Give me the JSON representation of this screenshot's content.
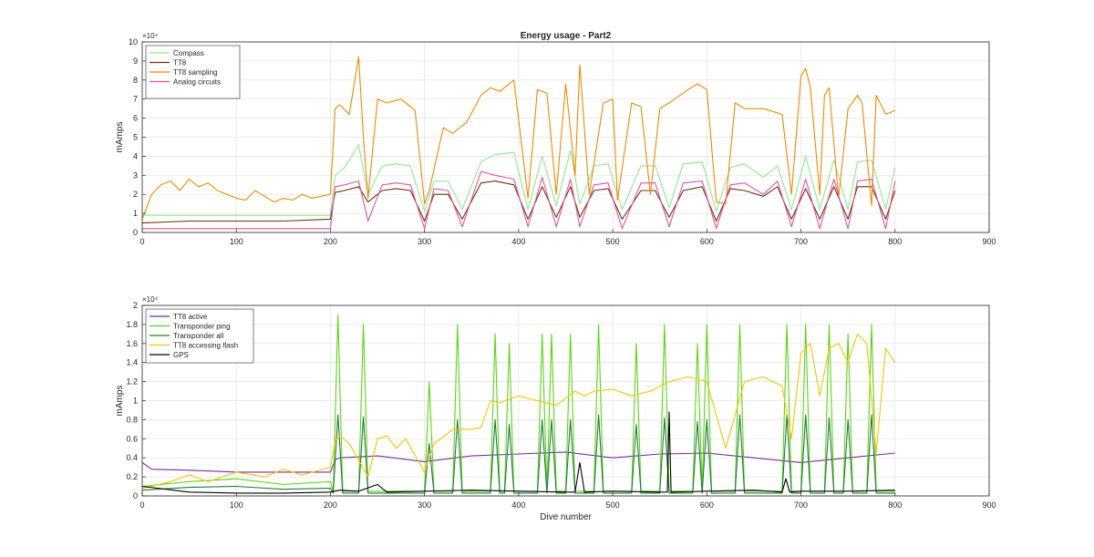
{
  "figure": {
    "background": "#ffffff"
  },
  "chart_data": [
    {
      "type": "line",
      "title": "Energy usage - Part2",
      "xlabel": "",
      "ylabel": "mAmps",
      "xlim": [
        0,
        900
      ],
      "ylim": [
        0,
        100000
      ],
      "xticks": [
        0,
        100,
        200,
        300,
        400,
        500,
        600,
        700,
        800,
        900
      ],
      "yticks": [
        0,
        10000,
        20000,
        30000,
        40000,
        50000,
        60000,
        70000,
        80000,
        90000,
        100000
      ],
      "ytick_labels": [
        "0",
        "1",
        "2",
        "3",
        "4",
        "5",
        "6",
        "7",
        "8",
        "9",
        "10"
      ],
      "y_exponent": "×10⁴",
      "grid": true,
      "legend_position": "top-left",
      "series": [
        {
          "name": "Compass",
          "color": "#8fea8f",
          "x": [
            0,
            50,
            100,
            150,
            200,
            205,
            215,
            230,
            240,
            255,
            270,
            285,
            300,
            310,
            325,
            340,
            360,
            375,
            395,
            410,
            425,
            440,
            455,
            465,
            480,
            495,
            510,
            530,
            545,
            560,
            575,
            595,
            610,
            625,
            640,
            660,
            675,
            690,
            705,
            720,
            735,
            750,
            760,
            775,
            790,
            800
          ],
          "values": [
            9000,
            9000,
            9000,
            9000,
            9000,
            30000,
            34000,
            46000,
            20000,
            35000,
            36000,
            35000,
            11000,
            27000,
            27000,
            12000,
            37000,
            41000,
            42000,
            12000,
            40000,
            14000,
            43000,
            15000,
            35000,
            36000,
            12000,
            35000,
            35000,
            13000,
            36000,
            37000,
            11000,
            34000,
            36000,
            29000,
            35000,
            12000,
            40000,
            12000,
            38000,
            12000,
            37000,
            38000,
            12000,
            34000
          ]
        },
        {
          "name": "TT8",
          "color": "#6b3210",
          "x": [
            0,
            50,
            100,
            150,
            200,
            205,
            215,
            230,
            240,
            255,
            270,
            285,
            300,
            310,
            325,
            340,
            360,
            375,
            395,
            410,
            425,
            440,
            455,
            465,
            480,
            495,
            510,
            530,
            545,
            560,
            575,
            595,
            610,
            625,
            640,
            660,
            675,
            690,
            705,
            720,
            735,
            750,
            760,
            775,
            790,
            800
          ],
          "values": [
            5000,
            6000,
            6000,
            6000,
            7000,
            21000,
            22000,
            24000,
            16000,
            22000,
            23000,
            22000,
            6000,
            20000,
            20000,
            7000,
            26000,
            27000,
            25000,
            7000,
            24000,
            8000,
            24000,
            8000,
            22000,
            23000,
            7000,
            22000,
            22000,
            8000,
            22000,
            24000,
            6000,
            23000,
            22000,
            19000,
            24000,
            7000,
            23000,
            7000,
            24000,
            7000,
            24000,
            24000,
            7000,
            22000
          ]
        },
        {
          "name": "TT8 sampling",
          "color": "#f08a00",
          "x": [
            0,
            10,
            20,
            30,
            40,
            50,
            60,
            70,
            80,
            90,
            100,
            110,
            120,
            130,
            140,
            150,
            160,
            170,
            180,
            190,
            200,
            205,
            210,
            220,
            230,
            235,
            240,
            250,
            260,
            275,
            290,
            300,
            305,
            320,
            330,
            345,
            360,
            370,
            380,
            395,
            410,
            420,
            430,
            440,
            450,
            460,
            465,
            475,
            490,
            500,
            505,
            520,
            530,
            540,
            550,
            560,
            580,
            590,
            600,
            610,
            620,
            630,
            640,
            660,
            680,
            690,
            700,
            705,
            710,
            720,
            725,
            730,
            740,
            750,
            760,
            765,
            775,
            780,
            790,
            800
          ],
          "values": [
            7000,
            20000,
            25000,
            27000,
            22000,
            28000,
            24000,
            26000,
            22000,
            20000,
            18000,
            17000,
            22000,
            19000,
            16000,
            18000,
            17000,
            20000,
            18000,
            19000,
            20000,
            65000,
            67000,
            62000,
            92000,
            50000,
            18000,
            70000,
            68000,
            70000,
            64000,
            15000,
            22000,
            55000,
            52000,
            58000,
            72000,
            76000,
            74000,
            80000,
            18000,
            75000,
            73000,
            20000,
            78000,
            30000,
            88000,
            20000,
            68000,
            70000,
            17000,
            68000,
            66000,
            20000,
            65000,
            68000,
            75000,
            78000,
            75000,
            16000,
            15000,
            68000,
            65000,
            65000,
            62000,
            20000,
            82000,
            86000,
            76000,
            20000,
            72000,
            76000,
            18000,
            65000,
            72000,
            68000,
            14000,
            72000,
            62000,
            64000
          ]
        },
        {
          "name": "Analog circuits",
          "color": "#e0559c",
          "x": [
            0,
            50,
            100,
            150,
            200,
            205,
            215,
            230,
            240,
            255,
            270,
            285,
            300,
            310,
            325,
            340,
            360,
            375,
            395,
            410,
            425,
            440,
            455,
            465,
            480,
            495,
            510,
            530,
            545,
            560,
            575,
            595,
            610,
            625,
            640,
            660,
            675,
            690,
            705,
            720,
            735,
            750,
            760,
            775,
            790,
            800
          ],
          "values": [
            2000,
            2000,
            2000,
            2000,
            2000,
            24000,
            25000,
            27000,
            6000,
            25000,
            26000,
            25000,
            2000,
            23000,
            22000,
            3000,
            32000,
            30000,
            28000,
            3000,
            29000,
            3000,
            28000,
            3000,
            25000,
            26000,
            2000,
            26000,
            26000,
            3000,
            26000,
            27000,
            2000,
            25000,
            26000,
            20000,
            27000,
            3000,
            28000,
            2000,
            28000,
            2000,
            27000,
            28000,
            2000,
            27000
          ]
        }
      ]
    },
    {
      "type": "line",
      "title": "",
      "xlabel": "Dive number",
      "ylabel": "mAmps",
      "xlim": [
        0,
        900
      ],
      "ylim": [
        0,
        20000
      ],
      "xticks": [
        0,
        100,
        200,
        300,
        400,
        500,
        600,
        700,
        800,
        900
      ],
      "yticks": [
        0,
        2000,
        4000,
        6000,
        8000,
        10000,
        12000,
        14000,
        16000,
        18000,
        20000
      ],
      "ytick_labels": [
        "0",
        "0.2",
        "0.4",
        "0.6",
        "0.8",
        "1",
        "1.2",
        "1.4",
        "1.6",
        "1.8",
        "2"
      ],
      "y_exponent": "×10⁴",
      "grid": true,
      "legend_position": "top-left",
      "series": [
        {
          "name": "TT8 active",
          "color": "#7a2a9e",
          "x": [
            0,
            10,
            50,
            100,
            150,
            200,
            205,
            210,
            250,
            300,
            350,
            400,
            450,
            500,
            550,
            600,
            650,
            700,
            750,
            800
          ],
          "values": [
            3500,
            2800,
            2700,
            2500,
            2500,
            2500,
            3800,
            4000,
            4200,
            3600,
            4200,
            4400,
            4600,
            4000,
            4400,
            4500,
            4000,
            3500,
            4000,
            4500
          ]
        },
        {
          "name": "Transponder ping",
          "color": "#5cd416",
          "x": [
            0,
            50,
            100,
            150,
            200,
            203,
            208,
            213,
            230,
            235,
            240,
            300,
            305,
            310,
            330,
            335,
            340,
            370,
            375,
            380,
            385,
            390,
            395,
            420,
            425,
            430,
            435,
            440,
            450,
            455,
            460,
            480,
            485,
            490,
            520,
            525,
            530,
            550,
            555,
            560,
            585,
            590,
            595,
            600,
            605,
            630,
            635,
            640,
            680,
            685,
            690,
            700,
            705,
            710,
            725,
            730,
            735,
            745,
            750,
            755,
            770,
            775,
            780,
            790,
            800
          ],
          "values": [
            1000,
            1500,
            1800,
            1200,
            1500,
            500,
            19000,
            500,
            500,
            18000,
            500,
            500,
            12000,
            500,
            500,
            18000,
            500,
            500,
            17000,
            500,
            500,
            16000,
            500,
            500,
            17000,
            500,
            17000,
            500,
            500,
            17000,
            500,
            500,
            18000,
            500,
            500,
            16000,
            500,
            500,
            18000,
            500,
            500,
            16000,
            500,
            18000,
            500,
            500,
            18000,
            500,
            500,
            18000,
            500,
            500,
            18000,
            500,
            500,
            18000,
            500,
            500,
            17000,
            500,
            500,
            18000,
            500,
            500,
            500
          ]
        },
        {
          "name": "Transponder all",
          "color": "#1f7a3a",
          "x": [
            0,
            50,
            100,
            150,
            200,
            203,
            208,
            213,
            230,
            235,
            240,
            300,
            305,
            310,
            330,
            335,
            340,
            370,
            375,
            380,
            385,
            390,
            395,
            420,
            425,
            430,
            435,
            440,
            450,
            455,
            460,
            480,
            485,
            490,
            520,
            525,
            530,
            550,
            555,
            560,
            585,
            590,
            595,
            600,
            605,
            630,
            635,
            640,
            680,
            685,
            690,
            700,
            705,
            710,
            725,
            730,
            735,
            745,
            750,
            755,
            770,
            775,
            780,
            790,
            800
          ],
          "values": [
            600,
            900,
            1000,
            700,
            800,
            300,
            8500,
            300,
            300,
            8300,
            300,
            300,
            5500,
            300,
            300,
            8000,
            300,
            300,
            8000,
            300,
            300,
            7500,
            300,
            300,
            8000,
            300,
            8000,
            300,
            300,
            8000,
            300,
            300,
            8500,
            300,
            300,
            7500,
            300,
            300,
            8200,
            300,
            300,
            7800,
            300,
            8000,
            300,
            300,
            8500,
            300,
            300,
            8500,
            300,
            300,
            8500,
            300,
            300,
            8200,
            300,
            300,
            8000,
            300,
            300,
            8500,
            300,
            300,
            300
          ]
        },
        {
          "name": "TT8 accessing flash",
          "color": "#f5c400",
          "x": [
            0,
            10,
            30,
            50,
            70,
            100,
            130,
            150,
            170,
            200,
            205,
            210,
            220,
            240,
            250,
            260,
            270,
            280,
            300,
            310,
            320,
            330,
            350,
            360,
            370,
            380,
            400,
            420,
            440,
            460,
            470,
            480,
            500,
            520,
            540,
            560,
            580,
            600,
            620,
            640,
            660,
            680,
            690,
            700,
            710,
            720,
            730,
            740,
            750,
            760,
            770,
            780,
            790,
            800
          ],
          "values": [
            800,
            1000,
            1500,
            2200,
            1500,
            2500,
            2000,
            2800,
            2200,
            3000,
            5800,
            6300,
            5500,
            2000,
            6000,
            6300,
            5000,
            6000,
            2500,
            5500,
            6200,
            7000,
            7000,
            7200,
            10000,
            9800,
            10500,
            10000,
            9500,
            11000,
            10500,
            11000,
            11200,
            10500,
            11000,
            12000,
            12500,
            12000,
            5000,
            12000,
            12500,
            11500,
            6000,
            15000,
            16000,
            10500,
            15500,
            16000,
            14000,
            17000,
            16000,
            4500,
            15500,
            14000
          ]
        },
        {
          "name": "GPS",
          "color": "#000000",
          "x": [
            0,
            50,
            100,
            150,
            200,
            210,
            230,
            250,
            260,
            300,
            350,
            400,
            450,
            460,
            465,
            470,
            500,
            550,
            558,
            560,
            562,
            600,
            650,
            680,
            684,
            688,
            700,
            750,
            800
          ],
          "values": [
            1000,
            400,
            300,
            300,
            400,
            600,
            500,
            1200,
            400,
            500,
            600,
            500,
            400,
            400,
            3500,
            400,
            500,
            400,
            400,
            8800,
            400,
            500,
            600,
            400,
            1800,
            400,
            500,
            500,
            600
          ]
        }
      ]
    }
  ]
}
